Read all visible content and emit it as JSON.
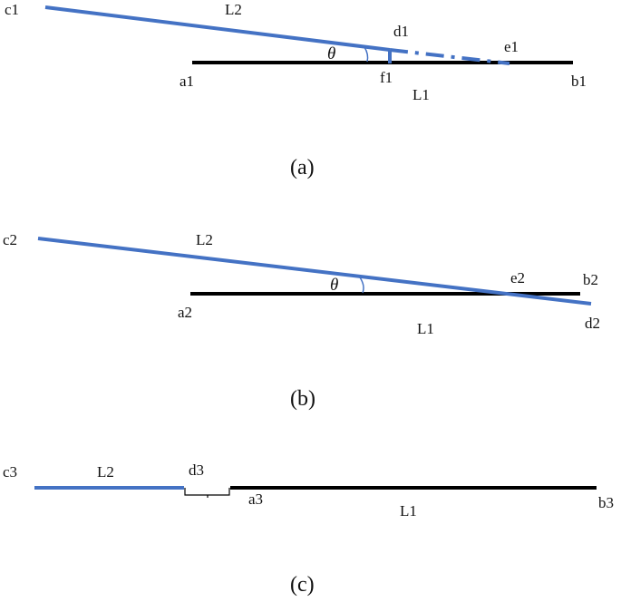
{
  "colors": {
    "l1": "#000000",
    "l2": "#4472C4"
  },
  "panel_a": {
    "caption": "(a)",
    "labels": {
      "c": "c1",
      "l2": "L2",
      "d": "d1",
      "e": "e1",
      "theta": "θ",
      "a": "a1",
      "f": "f1",
      "l1": "L1",
      "b": "b1"
    }
  },
  "panel_b": {
    "caption": "(b)",
    "labels": {
      "c": "c2",
      "l2": "L2",
      "theta": "θ",
      "e": "e2",
      "b": "b2",
      "a": "a2",
      "l1": "L1",
      "d": "d2"
    }
  },
  "panel_c": {
    "caption": "(c)",
    "labels": {
      "c": "c3",
      "l2": "L2",
      "d": "d3",
      "a": "a3",
      "l1": "L1",
      "b": "b3"
    }
  }
}
